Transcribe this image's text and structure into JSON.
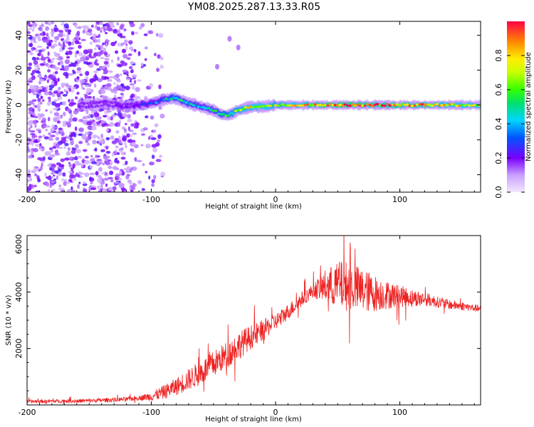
{
  "title": "YM08.2025.287.13.33.R05",
  "chart_data": [
    {
      "type": "heatmap",
      "name": "spectrogram",
      "xlabel": "Height of straight line (km)",
      "ylabel": "Frequency (Hz)",
      "xlim": [
        -200,
        165
      ],
      "ylim": [
        -50,
        48
      ],
      "xticks": [
        -200,
        -100,
        0,
        100
      ],
      "yticks": [
        -40,
        -20,
        0,
        20,
        40
      ],
      "colorbar": {
        "label": "Normalized spectral amplitude",
        "range": [
          0,
          1
        ],
        "ticks": [
          "0.0",
          "0.2",
          "0.4",
          "0.6",
          "0.8"
        ]
      },
      "ridge": {
        "x": [
          -155,
          -135,
          -120,
          -100,
          -90,
          -82,
          -70,
          -60,
          -50,
          -45,
          -40,
          -35,
          -30,
          -20,
          -10,
          0,
          20,
          40,
          60,
          80,
          100,
          120,
          140,
          160
        ],
        "frequency": [
          0,
          1,
          -1,
          1,
          3,
          4,
          1,
          -1,
          -3,
          -5,
          -6,
          -5,
          -3,
          -1,
          -1,
          0,
          0,
          0,
          0,
          0,
          0,
          0,
          0,
          0
        ],
        "amplitude": [
          0.15,
          0.15,
          0.2,
          0.3,
          0.45,
          0.55,
          0.5,
          0.45,
          0.5,
          0.55,
          0.6,
          0.65,
          0.7,
          0.75,
          0.8,
          0.7,
          0.8,
          0.95,
          0.95,
          0.9,
          0.9,
          0.9,
          0.8,
          0.75
        ]
      }
    },
    {
      "type": "line",
      "name": "snr",
      "xlabel": "Height of straight line (km)",
      "ylabel": "SNR (10 * v/v)",
      "xlim": [
        -200,
        165
      ],
      "ylim": [
        0,
        6000
      ],
      "xticks": [
        -200,
        -100,
        0,
        100
      ],
      "yticks": [
        2000,
        4000,
        6000
      ],
      "color": "#ee2222",
      "envelope": {
        "x": [
          -200,
          -150,
          -120,
          -100,
          -90,
          -80,
          -70,
          -60,
          -50,
          -40,
          -30,
          -20,
          -10,
          0,
          10,
          20,
          30,
          40,
          50,
          60,
          70,
          80,
          90,
          100,
          110,
          120,
          130,
          140,
          150,
          165
        ],
        "y": [
          120,
          150,
          200,
          300,
          450,
          650,
          900,
          1150,
          1450,
          1750,
          2100,
          2400,
          2650,
          2950,
          3300,
          3700,
          4050,
          4200,
          4250,
          4200,
          4050,
          3950,
          3900,
          3850,
          3800,
          3750,
          3650,
          3550,
          3500,
          3400
        ]
      },
      "noise": {
        "x": [
          -200,
          -110,
          -90,
          -60,
          -30,
          0,
          30,
          40,
          55,
          70,
          90,
          110,
          130,
          165
        ],
        "amplitude": [
          60,
          80,
          250,
          450,
          500,
          300,
          250,
          600,
          900,
          800,
          500,
          300,
          200,
          120
        ]
      }
    }
  ]
}
